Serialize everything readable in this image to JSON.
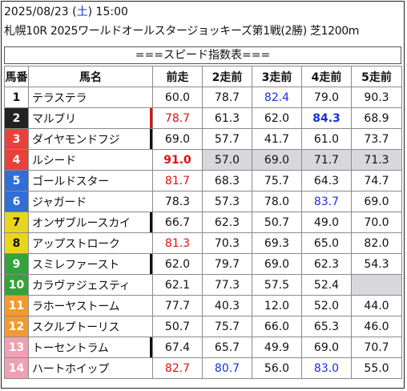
{
  "header": {
    "date": "2025/08/23",
    "weekday_open": " (",
    "weekday": "土",
    "weekday_close": ") ",
    "time": "15:00",
    "race_title": "札幌10R 2025ワールドオールスタージョッキーズ第1戦(2勝) 芝1200m"
  },
  "banner": "===スピード指数表===",
  "columns": [
    "馬番",
    "馬名",
    "前走",
    "2走前",
    "3走前",
    "4走前",
    "5走前"
  ],
  "colors": {
    "gate": [
      "#ffffff",
      "#222222",
      "#e8413c",
      "#2f6fd6",
      "#e9d51c",
      "#33a33c",
      "#f29a2e",
      "#f0a0b4"
    ],
    "red": "#e01010",
    "blue": "#1a2fd6",
    "highlight": "#d8d8dc"
  },
  "rows": [
    {
      "num": "1",
      "name": "テラステラ",
      "v": [
        "60.0",
        "78.7",
        "82.4",
        "79.0",
        "90.3"
      ]
    },
    {
      "num": "2",
      "name": "マルブリ",
      "v": [
        "78.7",
        "61.3",
        "62.0",
        "84.3",
        "68.9"
      ]
    },
    {
      "num": "3",
      "name": "ダイヤモンドフジ",
      "v": [
        "69.0",
        "57.7",
        "41.7",
        "61.0",
        "73.7"
      ]
    },
    {
      "num": "4",
      "name": "ルシード",
      "v": [
        "91.0",
        "57.0",
        "69.0",
        "71.7",
        "71.3"
      ]
    },
    {
      "num": "5",
      "name": "ゴールドスター",
      "v": [
        "81.7",
        "68.3",
        "75.7",
        "64.3",
        "74.7"
      ]
    },
    {
      "num": "6",
      "name": "ジャガード",
      "v": [
        "78.3",
        "57.3",
        "78.0",
        "83.7",
        "69.0"
      ]
    },
    {
      "num": "7",
      "name": "オンザブルースカイ",
      "v": [
        "66.7",
        "62.3",
        "50.7",
        "49.0",
        "70.0"
      ]
    },
    {
      "num": "8",
      "name": "アップストローク",
      "v": [
        "81.3",
        "70.3",
        "69.3",
        "65.0",
        "82.0"
      ]
    },
    {
      "num": "9",
      "name": "スミレファースト",
      "v": [
        "62.0",
        "79.7",
        "69.0",
        "62.3",
        "54.3"
      ]
    },
    {
      "num": "10",
      "name": "カラヴァジェスティ",
      "v": [
        "62.1",
        "77.3",
        "57.5",
        "52.4",
        ""
      ]
    },
    {
      "num": "11",
      "name": "ラホーヤストーム",
      "v": [
        "77.7",
        "40.3",
        "12.0",
        "52.0",
        "44.0"
      ]
    },
    {
      "num": "12",
      "name": "スクルプトーリス",
      "v": [
        "50.7",
        "75.7",
        "66.0",
        "65.3",
        "46.0"
      ]
    },
    {
      "num": "13",
      "name": "トーセントラム",
      "v": [
        "67.4",
        "65.7",
        "49.9",
        "69.0",
        "70.7"
      ]
    },
    {
      "num": "14",
      "name": "ハートホイップ",
      "v": [
        "82.7",
        "80.7",
        "56.0",
        "83.0",
        "55.0"
      ]
    }
  ]
}
